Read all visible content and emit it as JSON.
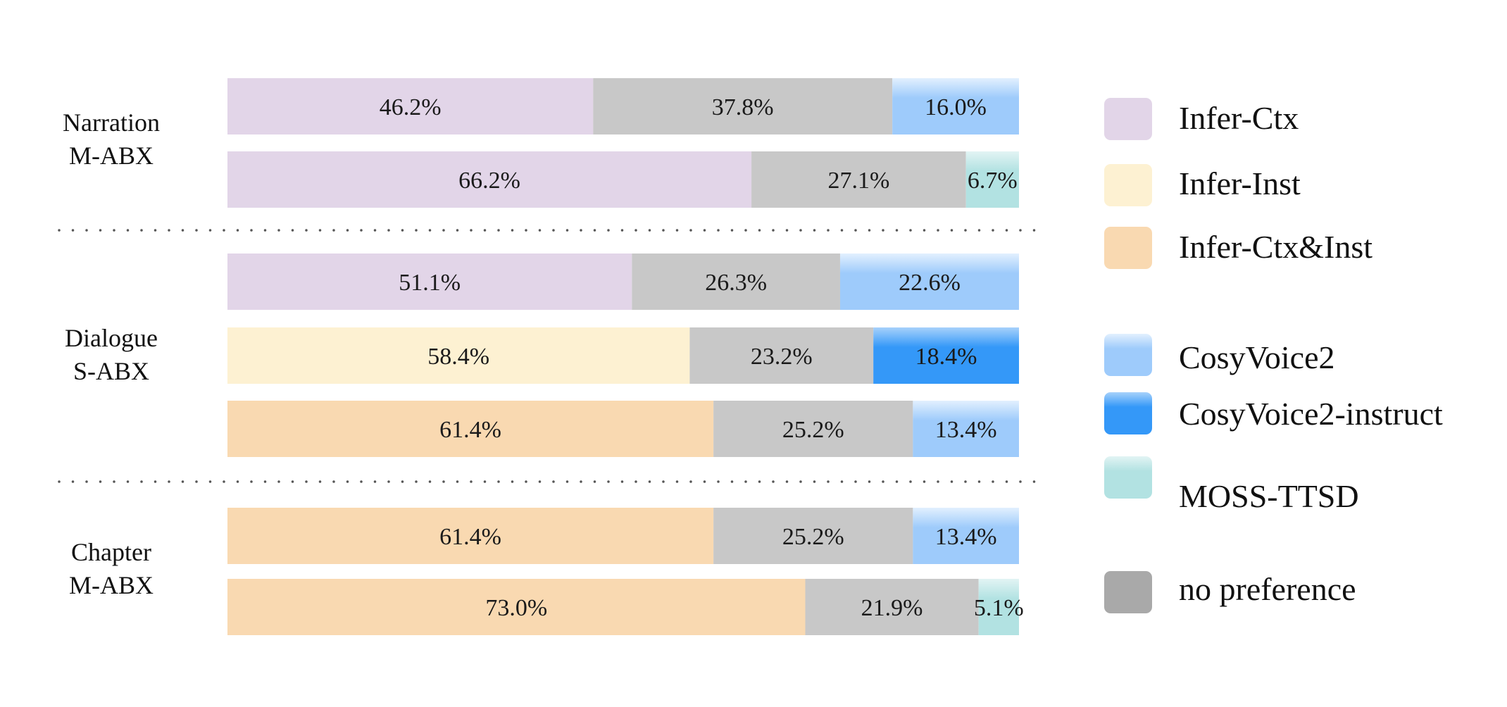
{
  "chart_data": {
    "type": "bar",
    "orientation": "horizontal",
    "stacked": true,
    "normalized_percent": true,
    "colors": {
      "Infer-Ctx": "#e2d5e8",
      "Infer-Inst": "#fdf1d2",
      "Infer-Ctx&Inst": "#f9d9b1",
      "CosyVoice2": "#9ecbfb",
      "CosyVoice2-instruct": "#3498f8",
      "MOSS-TTSD": "#b2e2e2",
      "no preference": "#c8c8c8"
    },
    "legend": {
      "placement": "right",
      "entries": [
        {
          "name": "Infer-Ctx",
          "icon": "swatch-icon"
        },
        {
          "name": "Infer-Inst",
          "icon": "swatch-icon"
        },
        {
          "name": "Infer-Ctx&Inst",
          "icon": "swatch-icon"
        },
        {
          "name": "CosyVoice2",
          "icon": "swatch-gradient-icon"
        },
        {
          "name": "CosyVoice2-instruct",
          "icon": "swatch-gradient-icon"
        },
        {
          "name": "MOSS-TTSD",
          "icon": "swatch-gradient-icon"
        },
        {
          "name": "no preference",
          "icon": "swatch-icon"
        }
      ]
    },
    "groups": [
      {
        "label": [
          "Narration",
          "M-ABX"
        ],
        "bars": [
          {
            "segments": [
              {
                "series": "Infer-Ctx",
                "value": 46.2,
                "label": "46.2%"
              },
              {
                "series": "no preference",
                "value": 37.8,
                "label": "37.8%"
              },
              {
                "series": "CosyVoice2",
                "value": 16.0,
                "label": "16.0%"
              }
            ]
          },
          {
            "segments": [
              {
                "series": "Infer-Ctx",
                "value": 66.2,
                "label": "66.2%"
              },
              {
                "series": "no preference",
                "value": 27.1,
                "label": "27.1%"
              },
              {
                "series": "MOSS-TTSD",
                "value": 6.7,
                "label": "6.7%"
              }
            ]
          }
        ]
      },
      {
        "label": [
          "Dialogue",
          "S-ABX"
        ],
        "bars": [
          {
            "segments": [
              {
                "series": "Infer-Ctx",
                "value": 51.1,
                "label": "51.1%"
              },
              {
                "series": "no preference",
                "value": 26.3,
                "label": "26.3%"
              },
              {
                "series": "CosyVoice2",
                "value": 22.6,
                "label": "22.6%"
              }
            ]
          },
          {
            "segments": [
              {
                "series": "Infer-Inst",
                "value": 58.4,
                "label": "58.4%"
              },
              {
                "series": "no preference",
                "value": 23.2,
                "label": "23.2%"
              },
              {
                "series": "CosyVoice2-instruct",
                "value": 18.4,
                "label": "18.4%"
              }
            ]
          },
          {
            "segments": [
              {
                "series": "Infer-Ctx&Inst",
                "value": 61.4,
                "label": "61.4%"
              },
              {
                "series": "no preference",
                "value": 25.2,
                "label": "25.2%"
              },
              {
                "series": "CosyVoice2",
                "value": 13.4,
                "label": "13.4%"
              }
            ]
          }
        ]
      },
      {
        "label": [
          "Chapter",
          "M-ABX"
        ],
        "bars": [
          {
            "segments": [
              {
                "series": "Infer-Ctx&Inst",
                "value": 61.4,
                "label": "61.4%"
              },
              {
                "series": "no preference",
                "value": 25.2,
                "label": "25.2%"
              },
              {
                "series": "CosyVoice2",
                "value": 13.4,
                "label": "13.4%"
              }
            ]
          },
          {
            "segments": [
              {
                "series": "Infer-Ctx&Inst",
                "value": 73.0,
                "label": "73.0%"
              },
              {
                "series": "no preference",
                "value": 21.9,
                "label": "21.9%"
              },
              {
                "series": "MOSS-TTSD",
                "value": 5.1,
                "label": "5.1%"
              }
            ]
          }
        ]
      }
    ]
  }
}
